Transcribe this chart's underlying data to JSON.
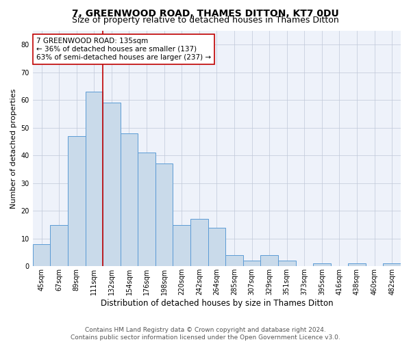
{
  "title": "7, GREENWOOD ROAD, THAMES DITTON, KT7 0DU",
  "subtitle": "Size of property relative to detached houses in Thames Ditton",
  "xlabel": "Distribution of detached houses by size in Thames Ditton",
  "ylabel": "Number of detached properties",
  "categories": [
    "45sqm",
    "67sqm",
    "89sqm",
    "111sqm",
    "132sqm",
    "154sqm",
    "176sqm",
    "198sqm",
    "220sqm",
    "242sqm",
    "264sqm",
    "285sqm",
    "307sqm",
    "329sqm",
    "351sqm",
    "373sqm",
    "395sqm",
    "416sqm",
    "438sqm",
    "460sqm",
    "482sqm"
  ],
  "bar_values": [
    8,
    15,
    47,
    63,
    59,
    48,
    41,
    37,
    15,
    17,
    14,
    4,
    2,
    4,
    2,
    0,
    1,
    0,
    1,
    0,
    1
  ],
  "annotation_text_line1": "7 GREENWOOD ROAD: 135sqm",
  "annotation_text_line2": "← 36% of detached houses are smaller (137)",
  "annotation_text_line3": "63% of semi-detached houses are larger (237) →",
  "bar_color": "#c9daea",
  "bar_edge_color": "#5b9bd5",
  "bar_line_color": "#c00000",
  "ylim": [
    0,
    85
  ],
  "yticks": [
    0,
    10,
    20,
    30,
    40,
    50,
    60,
    70,
    80
  ],
  "grid_color": "#c0c8d8",
  "bg_color": "#eef2fa",
  "footer_line1": "Contains HM Land Registry data © Crown copyright and database right 2024.",
  "footer_line2": "Contains public sector information licensed under the Open Government Licence v3.0.",
  "title_fontsize": 10,
  "subtitle_fontsize": 9,
  "xlabel_fontsize": 8.5,
  "ylabel_fontsize": 8,
  "tick_fontsize": 7,
  "annotation_fontsize": 7.5,
  "footer_fontsize": 6.5
}
